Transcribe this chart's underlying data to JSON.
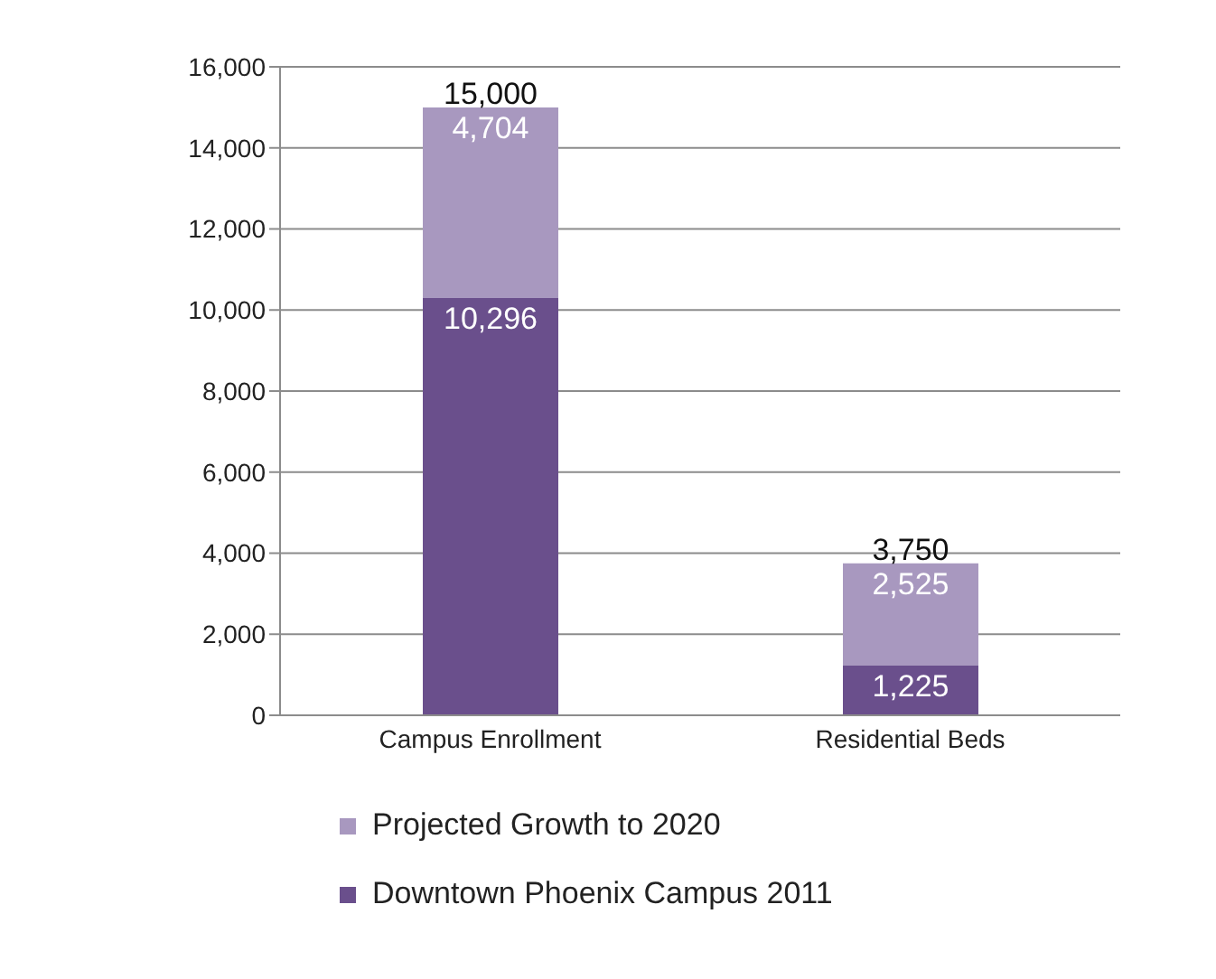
{
  "chart_data": {
    "type": "bar",
    "stacked": true,
    "categories": [
      "Campus Enrollment",
      "Residential Beds"
    ],
    "series": [
      {
        "name": "Downtown Phoenix Campus 2011",
        "color": "#6a4f8c",
        "values": [
          10296,
          1225
        ],
        "value_labels": [
          "10,296",
          "1,225"
        ]
      },
      {
        "name": "Projected Growth to 2020",
        "color": "#a898bf",
        "values": [
          4704,
          2525
        ],
        "value_labels": [
          "4,704",
          "2,525"
        ]
      }
    ],
    "totals": [
      "15,000",
      "3,750"
    ],
    "ylim": [
      0,
      16000
    ],
    "yticks": [
      {
        "value": 0,
        "label": "0"
      },
      {
        "value": 2000,
        "label": "2,000"
      },
      {
        "value": 4000,
        "label": "4,000"
      },
      {
        "value": 6000,
        "label": "6,000"
      },
      {
        "value": 8000,
        "label": "8,000"
      },
      {
        "value": 10000,
        "label": "10,000"
      },
      {
        "value": 12000,
        "label": "12,000"
      },
      {
        "value": 14000,
        "label": "14,000"
      },
      {
        "value": 16000,
        "label": "16,000"
      }
    ],
    "grid": "y",
    "legend": "bottom"
  }
}
